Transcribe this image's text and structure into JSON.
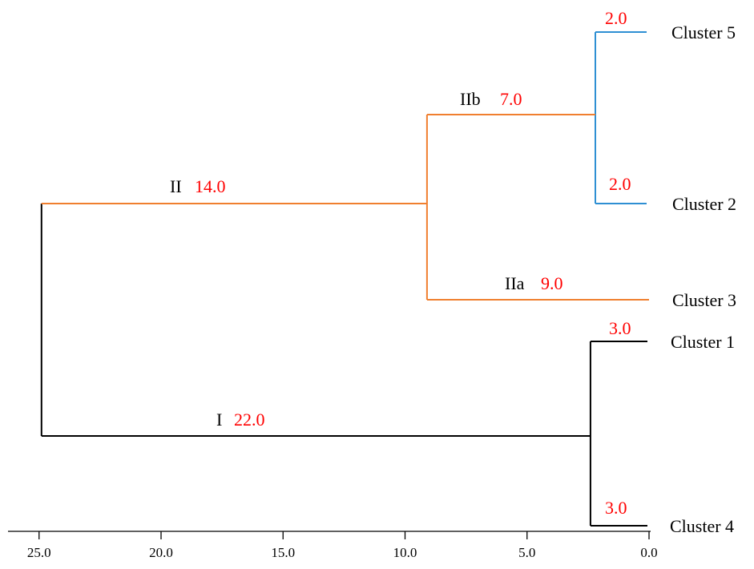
{
  "colors": {
    "cluster_one": "#000000",
    "cluster_two": "#f07f2f",
    "subgroup_5_2": "#2e8fd3",
    "value_label": "#ff0000",
    "axis": "#000000"
  },
  "axis": {
    "ticks": [
      {
        "value": 25.0,
        "label": "25.0"
      },
      {
        "value": 20.0,
        "label": "20.0"
      },
      {
        "value": 15.0,
        "label": "15.0"
      },
      {
        "value": 10.0,
        "label": "10.0"
      },
      {
        "value": 5.0,
        "label": "5.0"
      },
      {
        "value": 0.0,
        "label": "0.0"
      }
    ],
    "range": [
      25.6,
      0.0
    ]
  },
  "leaves": [
    {
      "id": "c5",
      "label": "Cluster 5"
    },
    {
      "id": "c2",
      "label": "Cluster 2"
    },
    {
      "id": "c3",
      "label": "Cluster 3"
    },
    {
      "id": "c1",
      "label": "Cluster 1"
    },
    {
      "id": "c4",
      "label": "Cluster 4"
    }
  ],
  "branches": [
    {
      "id": "II",
      "name": "II",
      "value": "14.0",
      "color_key": "cluster_two"
    },
    {
      "id": "IIb",
      "name": "IIb",
      "value": "7.0",
      "color_key": "cluster_two"
    },
    {
      "id": "IIa",
      "name": "IIa",
      "value": "9.0",
      "color_key": "cluster_two"
    },
    {
      "id": "c5",
      "name": "",
      "value": "2.0",
      "color_key": "subgroup_5_2"
    },
    {
      "id": "c2",
      "name": "",
      "value": "2.0",
      "color_key": "subgroup_5_2"
    },
    {
      "id": "I",
      "name": "I",
      "value": "22.0",
      "color_key": "cluster_one"
    },
    {
      "id": "c1",
      "name": "",
      "value": "3.0",
      "color_key": "cluster_one"
    },
    {
      "id": "c4",
      "name": "",
      "value": "3.0",
      "color_key": "cluster_one"
    }
  ],
  "joins": [
    {
      "id": "root",
      "distance": 24.9,
      "color_key": "cluster_one"
    },
    {
      "id": "join-II",
      "distance": 9.1,
      "color_key": "cluster_two"
    },
    {
      "id": "join-IIb",
      "distance": 2.2,
      "color_key": "subgroup_5_2"
    },
    {
      "id": "join-I",
      "distance": 2.4,
      "color_key": "cluster_one"
    }
  ]
}
